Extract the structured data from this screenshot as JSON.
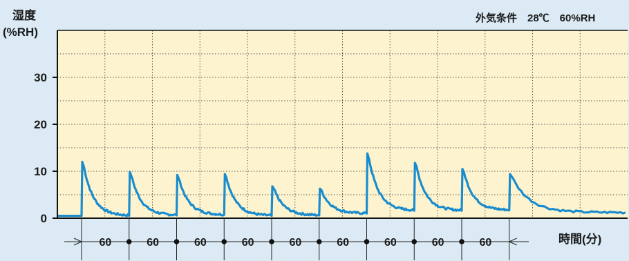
{
  "chart_data": {
    "type": "line",
    "ylabel_line1": "湿度",
    "ylabel_line2": "(%RH)",
    "condition": "外気条件　28℃　60%RH",
    "xlabel": "時間(分)",
    "ylim": [
      0,
      40
    ],
    "yticks": [
      0,
      10,
      20,
      30
    ],
    "grid": true,
    "interval_label": "60",
    "intervals": [
      "60",
      "60",
      "60",
      "60",
      "60",
      "60",
      "60",
      "60",
      "60"
    ],
    "cycle_count": 10,
    "series": [
      {
        "color": "#1a8ccd",
        "baseline_start": 0.5,
        "cycles": [
          {
            "peak": 12.0,
            "min": 0.5
          },
          {
            "peak": 9.9,
            "min": 0.6
          },
          {
            "peak": 9.2,
            "min": 0.7
          },
          {
            "peak": 9.4,
            "min": 0.5
          },
          {
            "peak": 6.8,
            "min": 0.6
          },
          {
            "peak": 6.3,
            "min": 1.0
          },
          {
            "peak": 13.8,
            "min": 1.6
          },
          {
            "peak": 11.8,
            "min": 1.6
          },
          {
            "peak": 10.5,
            "min": 1.7
          },
          {
            "peak": 9.4,
            "min": 1.2
          }
        ]
      }
    ]
  },
  "colors": {
    "plot_bg": "#fdf4cf",
    "page_bg": "#dbeaf4",
    "line": "#1a8ccd",
    "axis": "#111111",
    "grid": "#555555"
  }
}
